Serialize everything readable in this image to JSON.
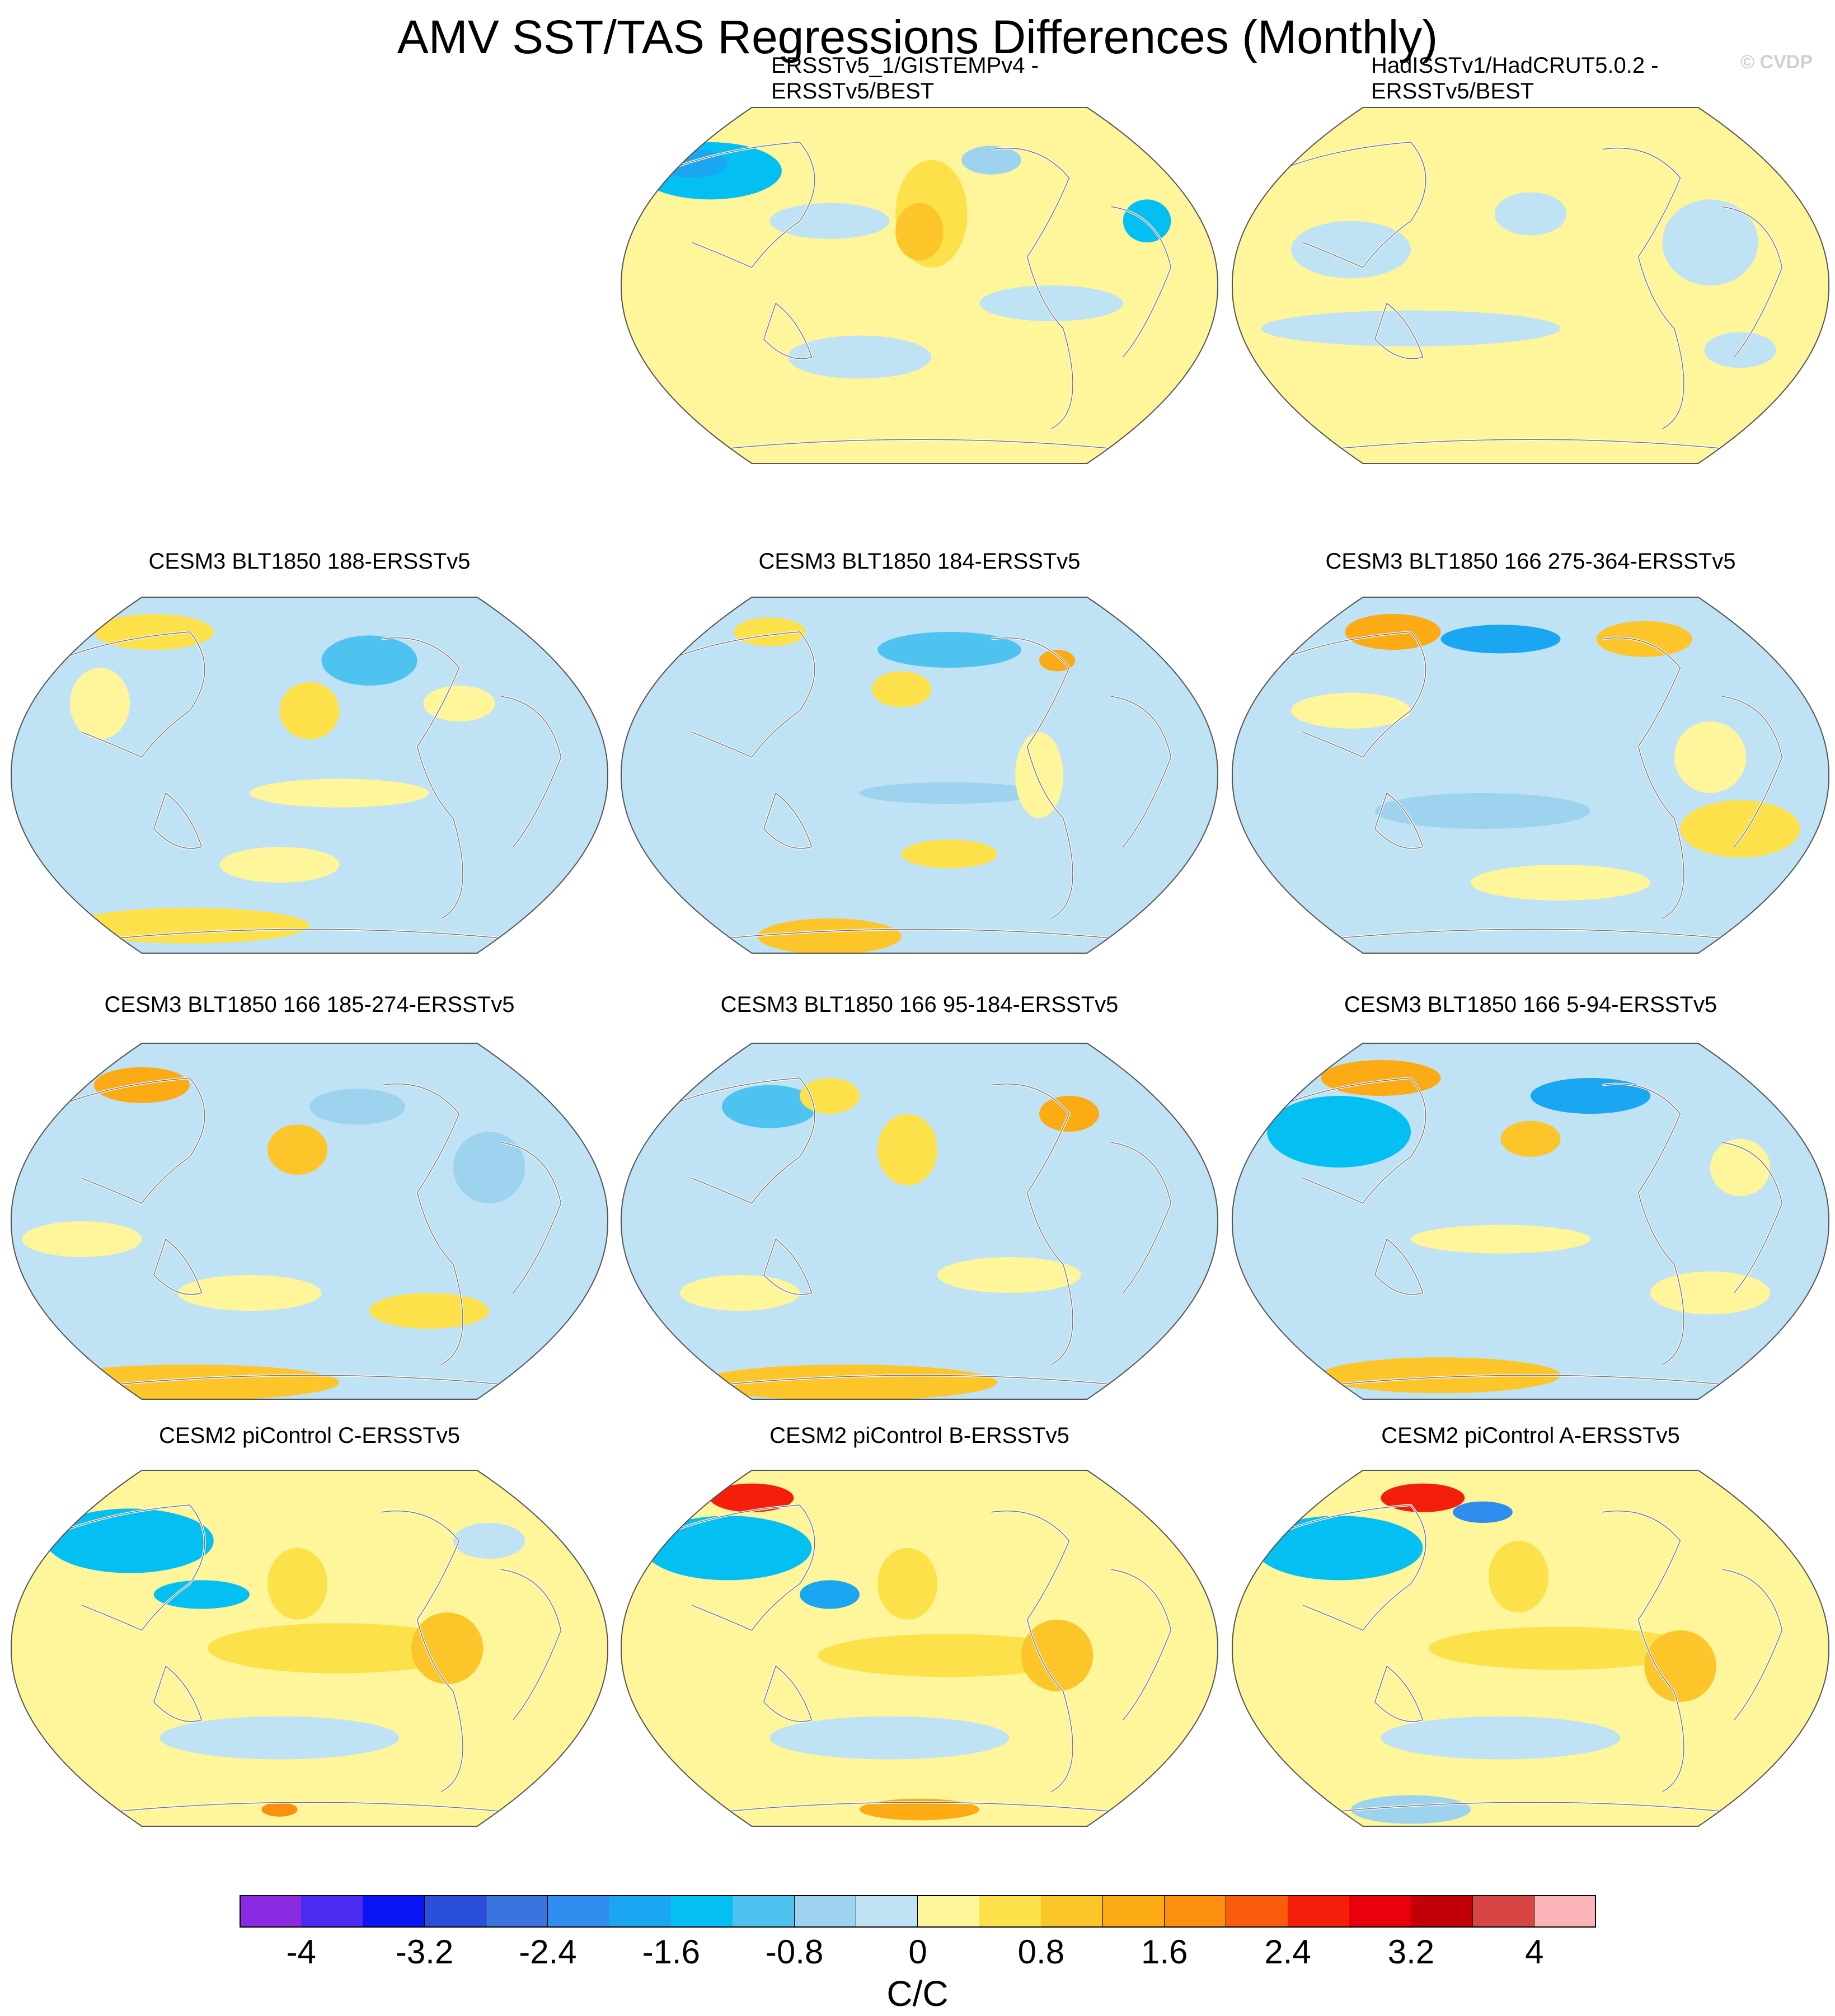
{
  "title": "AMV SST/TAS Regressions Differences (Monthly)",
  "copyright": "© CVDP",
  "panels": [
    {
      "title_lines": [
        "ERSSTv5_1/GISTEMPv4 -",
        "ERSSTv5/BEST"
      ],
      "pattern": "obs1"
    },
    {
      "title_lines": [
        "HadISSTv1/HadCRUT5.0.2 -",
        "ERSSTv5/BEST"
      ],
      "pattern": "obs2"
    },
    {
      "title_lines": [
        "CESM3 BLT1850 188-ERSSTv5"
      ],
      "pattern": "m1"
    },
    {
      "title_lines": [
        "CESM3 BLT1850 184-ERSSTv5"
      ],
      "pattern": "m2"
    },
    {
      "title_lines": [
        "CESM3 BLT1850 166 275-364-ERSSTv5"
      ],
      "pattern": "m3"
    },
    {
      "title_lines": [
        "CESM3 BLT1850 166 185-274-ERSSTv5"
      ],
      "pattern": "m4"
    },
    {
      "title_lines": [
        "CESM3 BLT1850 166 95-184-ERSSTv5"
      ],
      "pattern": "m5"
    },
    {
      "title_lines": [
        "CESM3 BLT1850 166 5-94-ERSSTv5"
      ],
      "pattern": "m6"
    },
    {
      "title_lines": [
        "CESM2 piControl C-ERSSTv5"
      ],
      "pattern": "c1"
    },
    {
      "title_lines": [
        "CESM2 piControl B-ERSSTv5"
      ],
      "pattern": "c2"
    },
    {
      "title_lines": [
        "CESM2 piControl A-ERSSTv5"
      ],
      "pattern": "c3"
    }
  ],
  "colorbar": {
    "unit": "C/C",
    "colors": [
      "#8a2be2",
      "#4b2cf0",
      "#0a14f5",
      "#2a4fd8",
      "#3a74e0",
      "#2f8df0",
      "#1aa6f0",
      "#04c0f2",
      "#4fc3f0",
      "#9dd3ef",
      "#bfe2f4",
      "#fff59a",
      "#fde14a",
      "#fcc62a",
      "#fcab14",
      "#fd8f0e",
      "#fb5c0c",
      "#f51e0a",
      "#e8000a",
      "#c3000a",
      "#d84545",
      "#fbb4b8"
    ],
    "tick_values": [
      -4,
      -3.2,
      -2.4,
      -1.6,
      -0.8,
      0,
      0.8,
      1.6,
      2.4,
      3.2,
      4
    ],
    "tick_labels": [
      "-4",
      "-3.2",
      "-2.4",
      "-1.6",
      "-0.8",
      "0",
      "0.8",
      "1.6",
      "2.4",
      "3.2",
      "4"
    ],
    "min": -4.4,
    "max": 4.4
  }
}
